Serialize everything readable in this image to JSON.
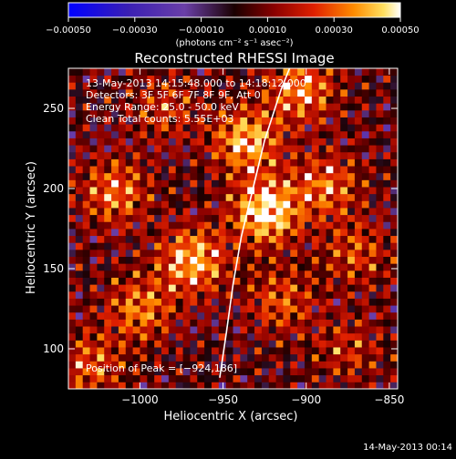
{
  "chart_data": {
    "type": "heatmap",
    "title": "Reconstructed RHESSI Image",
    "xlabel": "Heliocentric X (arcsec)",
    "ylabel": "Heliocentric Y (arcsec)",
    "xlim": [
      -1043,
      -845
    ],
    "ylim": [
      75,
      275
    ],
    "x_ticks": [
      -1000,
      -950,
      -900,
      -850
    ],
    "x_tick_labels": [
      "−1000",
      "−950",
      "−900",
      "−850"
    ],
    "y_ticks": [
      100,
      150,
      200,
      250
    ],
    "y_tick_labels": [
      "100",
      "150",
      "200",
      "250"
    ],
    "colorbar": {
      "range": [
        -0.0005,
        0.0005
      ],
      "ticks": [
        -0.0005,
        -0.0003,
        -0.0001,
        0.0001,
        0.0003,
        0.0005
      ],
      "tick_labels": [
        "−0.00050",
        "−0.00030",
        "−0.00010",
        "0.00010",
        "0.00030",
        "0.00050"
      ],
      "unit_label": "(photons cm⁻² s⁻¹ asec⁻²)"
    },
    "sources": [
      {
        "x": -924,
        "y": 186,
        "value": 0.0005
      },
      {
        "x": -968,
        "y": 155,
        "value": 0.00042
      },
      {
        "x": -936,
        "y": 230,
        "value": 0.0004
      },
      {
        "x": -903,
        "y": 262,
        "value": 0.00036
      },
      {
        "x": -1015,
        "y": 198,
        "value": 0.00032
      },
      {
        "x": -1000,
        "y": 125,
        "value": 0.0003
      },
      {
        "x": -888,
        "y": 202,
        "value": 0.0003
      },
      {
        "x": -1030,
        "y": 90,
        "value": 0.00026
      },
      {
        "x": -915,
        "y": 130,
        "value": 0.00024
      },
      {
        "x": -870,
        "y": 160,
        "value": 0.00022
      },
      {
        "x": -985,
        "y": 250,
        "value": 0.0002
      },
      {
        "x": -875,
        "y": 100,
        "value": 0.00018
      }
    ],
    "limb_points": [
      [
        -952,
        82
      ],
      [
        -948,
        110
      ],
      [
        -944,
        140
      ],
      [
        -939,
        170
      ],
      [
        -932,
        200
      ],
      [
        -925,
        230
      ],
      [
        -915,
        262
      ],
      [
        -910,
        275
      ]
    ],
    "annotations": {
      "time_range": "13-May-2013 14:15:48.000 to 14:18:12.000",
      "detectors": "Detectors: 3F 5F 6F 7F 8F 9F, Att 0",
      "energy": "Energy Range: 25.0 - 50.0 keV",
      "clean": "Clean    Total counts: 5.55E+03",
      "peak": "Position of Peak = [−924,186]"
    },
    "grid": false,
    "legend": "none"
  },
  "footer": {
    "date": "14-May-2013 00:14"
  }
}
